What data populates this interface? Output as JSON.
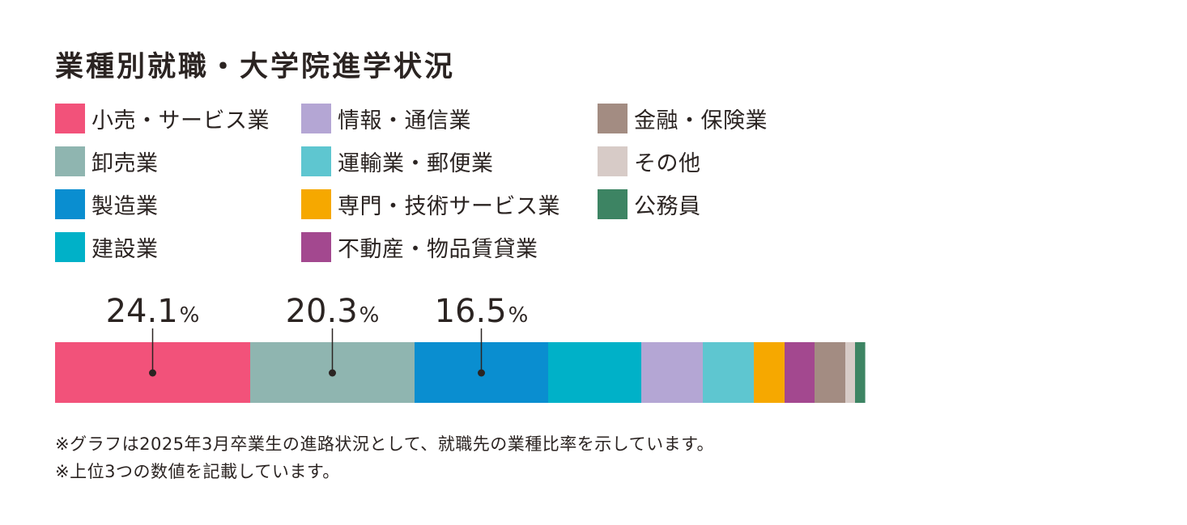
{
  "title": "業種別就職・大学院進学状況",
  "chart_data": {
    "type": "bar",
    "orientation": "horizontal-stacked-100",
    "title": "業種別就職・大学院進学状況",
    "unit": "%",
    "series": [
      {
        "name": "小売・サービス業",
        "value": 24.1,
        "color": "#f2527a",
        "labeled": true
      },
      {
        "name": "卸売業",
        "value": 20.3,
        "color": "#8fb5b0",
        "labeled": true
      },
      {
        "name": "製造業",
        "value": 16.5,
        "color": "#0a8ed0",
        "labeled": true
      },
      {
        "name": "建設業",
        "value": 11.5,
        "color": "#00b1c8",
        "labeled": false
      },
      {
        "name": "情報・通信業",
        "value": 7.6,
        "color": "#b4a6d4",
        "labeled": false
      },
      {
        "name": "運輸業・郵便業",
        "value": 6.3,
        "color": "#5ec6d0",
        "labeled": false
      },
      {
        "name": "専門・技術サービス業",
        "value": 3.8,
        "color": "#f6a800",
        "labeled": false
      },
      {
        "name": "不動産・物品賃貸業",
        "value": 3.7,
        "color": "#a3488f",
        "labeled": false
      },
      {
        "name": "金融・保険業",
        "value": 3.8,
        "color": "#a38c82",
        "labeled": false
      },
      {
        "name": "その他",
        "value": 1.2,
        "color": "#d7cbc7",
        "labeled": false
      },
      {
        "name": "公務員",
        "value": 1.2,
        "color": "#3d8463",
        "labeled": false
      }
    ],
    "legend_position": "top",
    "grid": false
  },
  "legend": {
    "columns": [
      [
        "小売・サービス業",
        "卸売業",
        "製造業",
        "建設業"
      ],
      [
        "情報・通信業",
        "運輸業・郵便業",
        "専門・技術サービス業",
        "不動産・物品賃貸業"
      ],
      [
        "金融・保険業",
        "その他",
        "公務員"
      ]
    ]
  },
  "notes": [
    "※グラフは2025年3月卒業生の進路状況として、就職先の業種比率を示しています。",
    "※上位3つの数値を記載しています。"
  ]
}
